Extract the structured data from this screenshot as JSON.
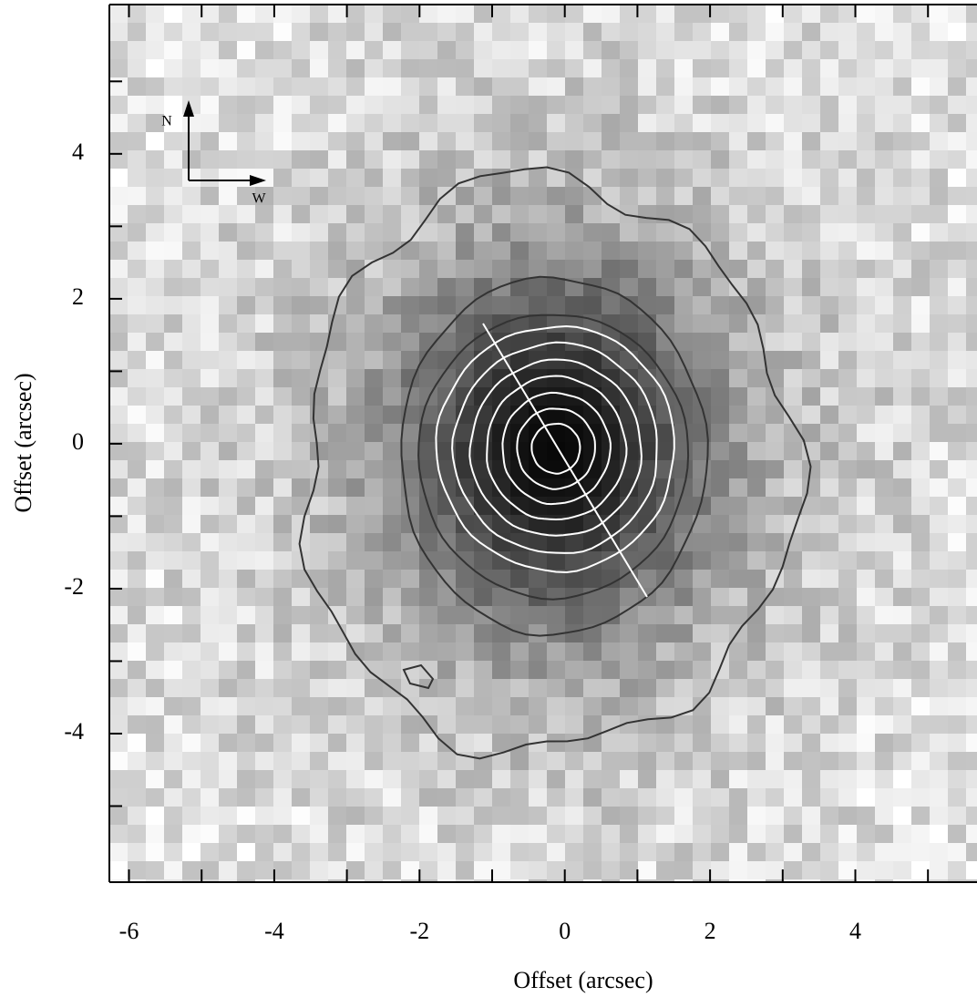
{
  "chart_data": {
    "type": "image",
    "xlabel": "Offset (arcsec)",
    "ylabel": "Offset (arcsec)",
    "xlim": [
      -6.27,
      5.65
    ],
    "ylim": [
      -6.05,
      6.06
    ],
    "xticks": [
      -6,
      -4,
      -2,
      0,
      2,
      4
    ],
    "yticks": [
      -4,
      -2,
      0,
      2,
      4
    ],
    "xminor": [
      -5,
      -3,
      -1,
      1,
      3,
      5
    ],
    "yminor": [
      -5,
      -3,
      -1,
      1,
      3,
      5
    ],
    "compass": {
      "north": "N",
      "west": "W"
    }
  }
}
